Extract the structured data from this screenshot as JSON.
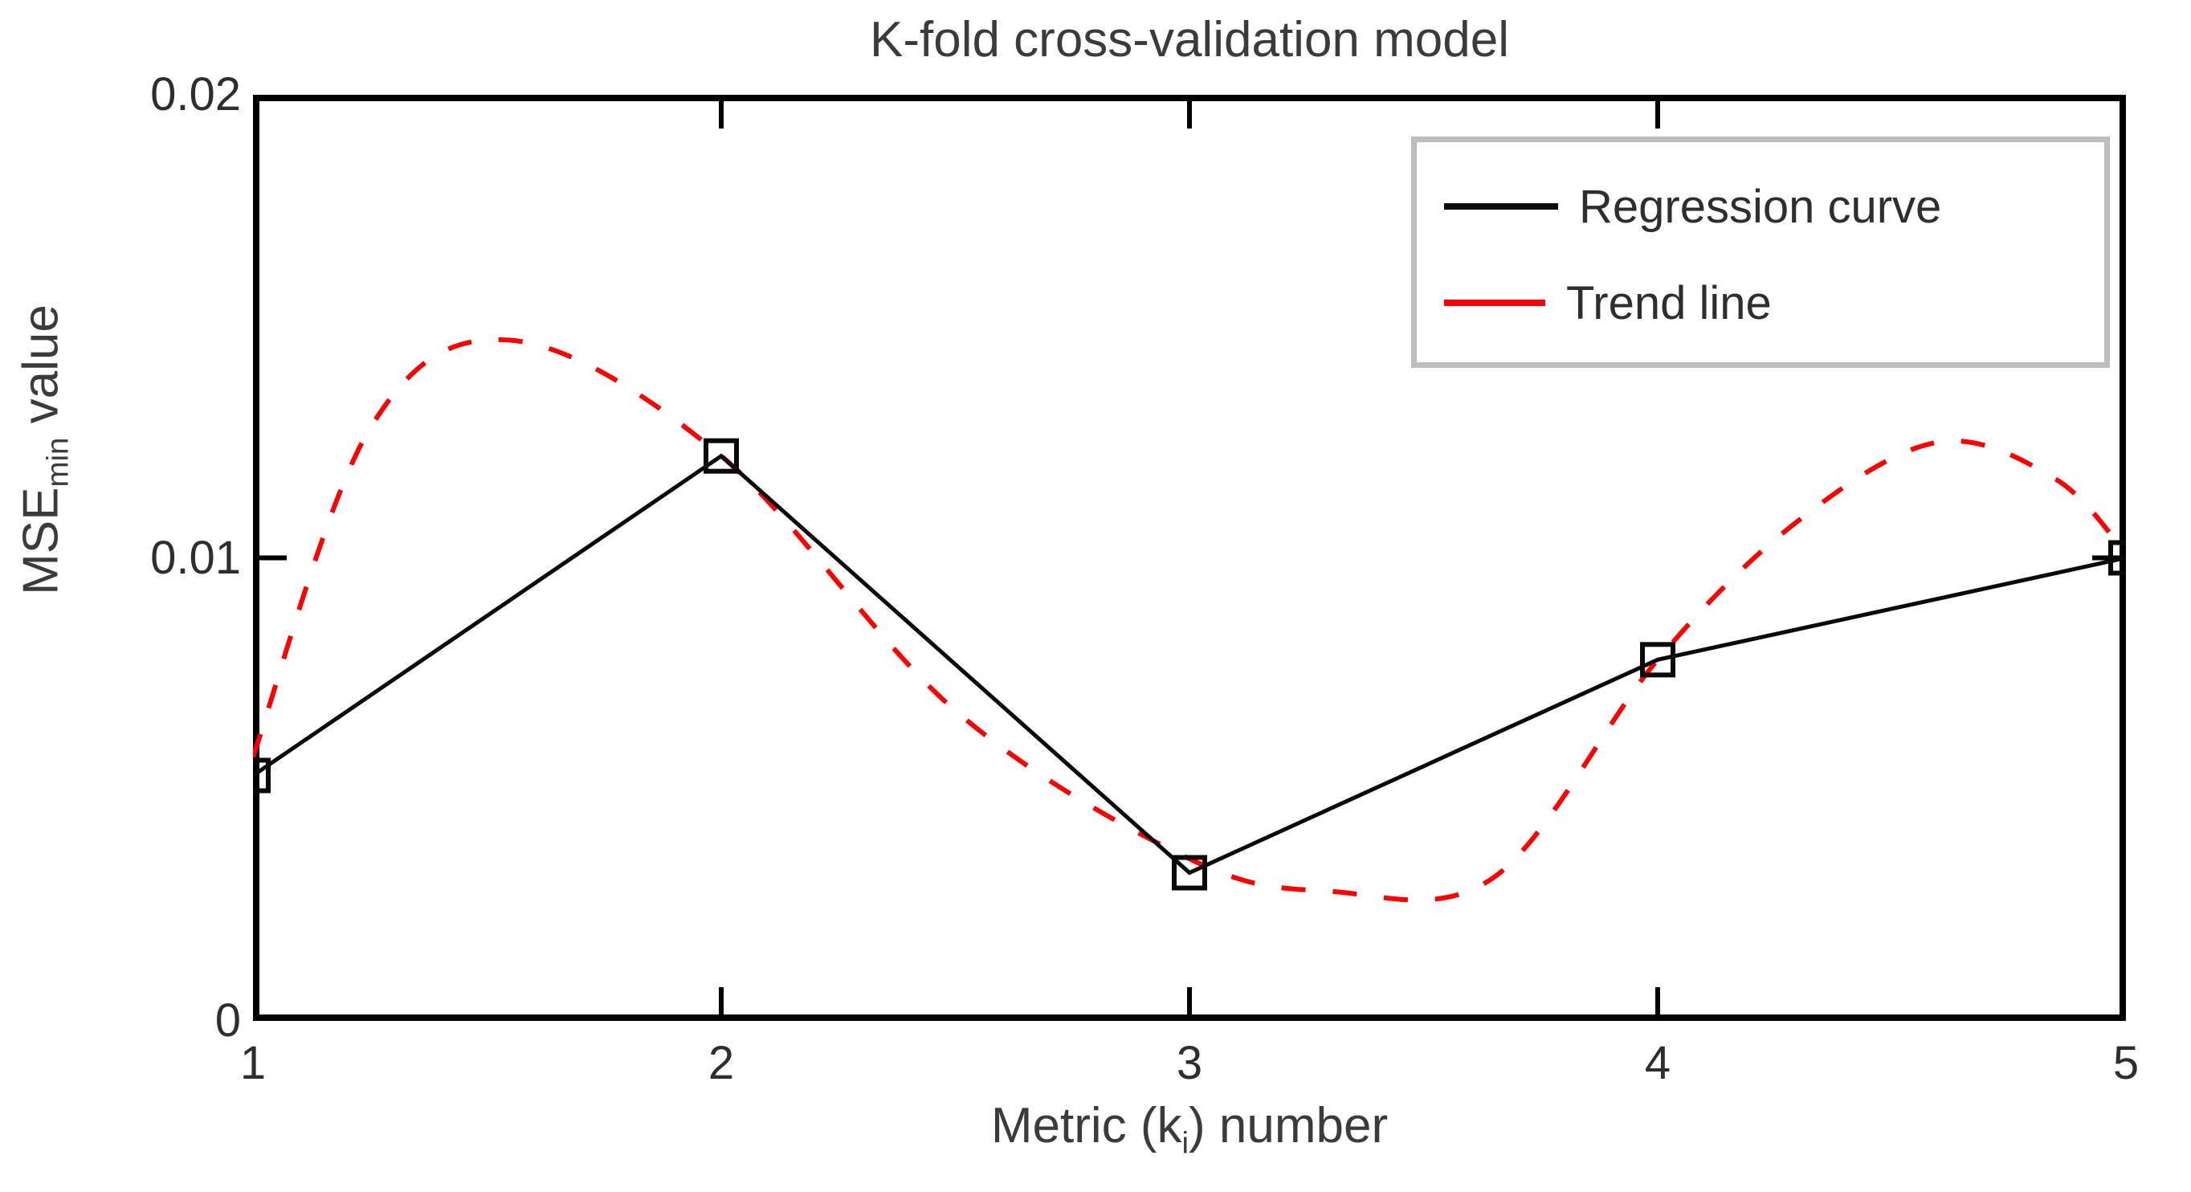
{
  "title": "K-fold cross-validation model",
  "labels": {
    "y_main": "MSE",
    "y_sub": "min",
    "y_rest": " value",
    "x_pre": "Metric (k",
    "x_sub": "i",
    "x_post": ") number"
  },
  "colors": {
    "regression_line": "#0a0a0a",
    "trend_line": "#ff0000",
    "axis": "#000000",
    "legend_border": "#bdbdbd",
    "text": "#3b3b3b"
  },
  "chart_data": {
    "type": "line",
    "title": "K-fold cross-validation model",
    "xlabel": "Metric (k_i) number",
    "ylabel": "MSE_min value",
    "xlim": [
      1,
      5
    ],
    "ylim": [
      0,
      0.02
    ],
    "x_ticks": [
      1,
      2,
      3,
      4,
      5
    ],
    "y_ticks": [
      0,
      0.01,
      0.02
    ],
    "y_tick_labels_top_to_bottom": [
      "0.02",
      "0.01",
      "0"
    ],
    "grid": false,
    "legend_position": "top-right",
    "series": [
      {
        "name": "Regression curve",
        "color": "#0a0a0a",
        "style": "solid",
        "marker": "open-square",
        "x": [
          1,
          2,
          3,
          4,
          5
        ],
        "y": [
          0.0053,
          0.0122,
          0.0032,
          0.0078,
          0.01
        ]
      },
      {
        "name": "Trend line",
        "color": "#ff0000",
        "style": "dashed",
        "marker": "none",
        "x": [
          1.0,
          1.25,
          1.55,
          2.0,
          2.5,
          3.0,
          3.3,
          3.65,
          4.0,
          4.3,
          4.6,
          4.85,
          5.0
        ],
        "y": [
          0.0057,
          0.0128,
          0.0147,
          0.0122,
          0.0067,
          0.0035,
          0.0028,
          0.0031,
          0.0078,
          0.0108,
          0.0125,
          0.0117,
          0.0101
        ]
      }
    ]
  }
}
